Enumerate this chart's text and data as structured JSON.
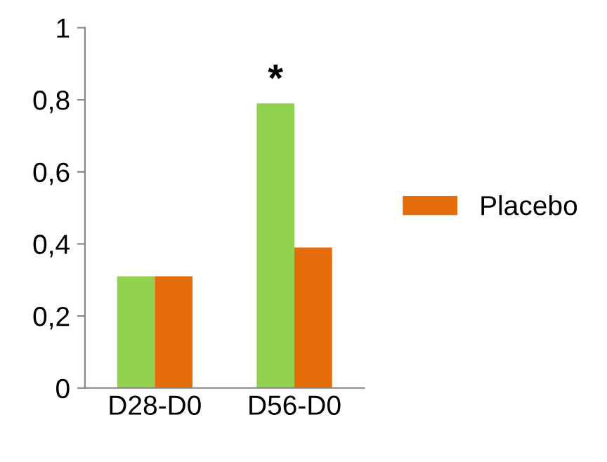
{
  "chart_data": {
    "type": "bar",
    "categories": [
      "D28-D0",
      "D56-D0"
    ],
    "series": [
      {
        "color": "#92d050",
        "values": [
          0.31,
          0.79
        ]
      },
      {
        "name": "Placebo",
        "color": "#e46c0a",
        "values": [
          0.31,
          0.39
        ]
      }
    ],
    "ylim": [
      0,
      1
    ],
    "yticks": [
      {
        "value": 0,
        "label": "0"
      },
      {
        "value": 0.2,
        "label": "0,2"
      },
      {
        "value": 0.4,
        "label": "0,4"
      },
      {
        "value": 0.6,
        "label": "0,6"
      },
      {
        "value": 0.8,
        "label": "0,8"
      },
      {
        "value": 1,
        "label": "1"
      }
    ],
    "annotations": [
      {
        "text": "*",
        "x": "D56-D0",
        "y": 0.79
      }
    ],
    "legend": "right",
    "grid": false
  }
}
